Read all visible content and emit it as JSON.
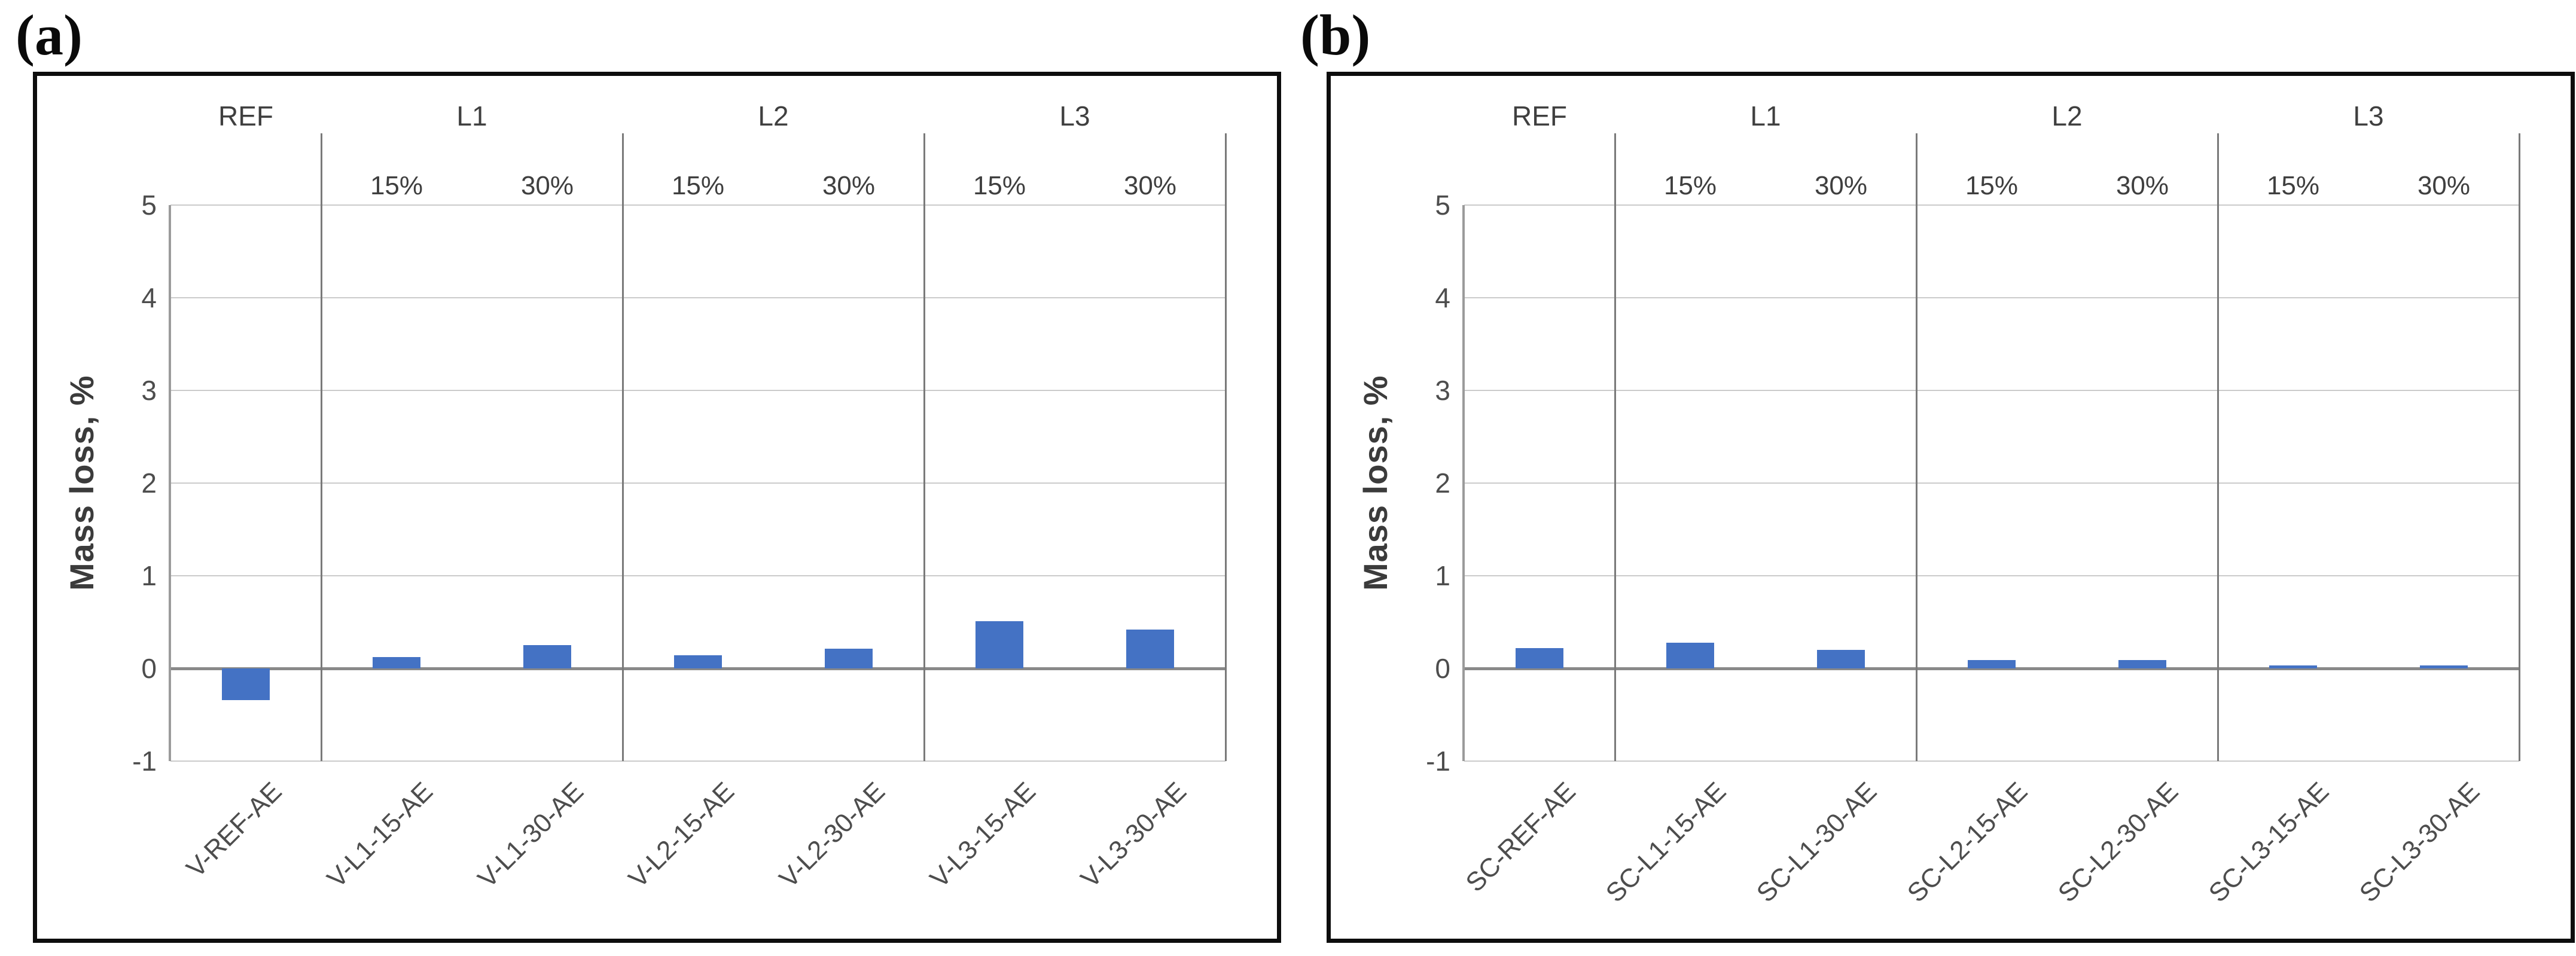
{
  "figure": {
    "panels": [
      {
        "tag": "(a)"
      },
      {
        "tag": "(b)"
      }
    ]
  },
  "chart_data": [
    {
      "type": "bar",
      "panel": "(a)",
      "title": "",
      "xlabel": "",
      "ylabel": "Mass loss, %",
      "ylim": [
        -1,
        5
      ],
      "yticks": [
        5,
        4,
        3,
        2,
        1,
        0,
        -1
      ],
      "grid": true,
      "legend_position": "none",
      "bar_color": "#4472C4",
      "groups": [
        {
          "label": "REF",
          "sublabels": []
        },
        {
          "label": "L1",
          "sublabels": [
            "15%",
            "30%"
          ]
        },
        {
          "label": "L2",
          "sublabels": [
            "15%",
            "30%"
          ]
        },
        {
          "label": "L3",
          "sublabels": [
            "15%",
            "30%"
          ]
        }
      ],
      "categories": [
        "V-REF-AE",
        "V-L1-15-AE",
        "V-L1-30-AE",
        "V-L2-15-AE",
        "V-L2-30-AE",
        "V-L3-15-AE",
        "V-L3-30-AE"
      ],
      "values": [
        -0.34,
        0.12,
        0.25,
        0.14,
        0.21,
        0.51,
        0.42
      ]
    },
    {
      "type": "bar",
      "panel": "(b)",
      "title": "",
      "xlabel": "",
      "ylabel": "Mass loss, %",
      "ylim": [
        -1,
        5
      ],
      "yticks": [
        5,
        4,
        3,
        2,
        1,
        0,
        -1
      ],
      "grid": true,
      "legend_position": "none",
      "bar_color": "#4472C4",
      "groups": [
        {
          "label": "REF",
          "sublabels": []
        },
        {
          "label": "L1",
          "sublabels": [
            "15%",
            "30%"
          ]
        },
        {
          "label": "L2",
          "sublabels": [
            "15%",
            "30%"
          ]
        },
        {
          "label": "L3",
          "sublabels": [
            "15%",
            "30%"
          ]
        }
      ],
      "categories": [
        "SC-REF-AE",
        "SC-L1-15-AE",
        "SC-L1-30-AE",
        "SC-L2-15-AE",
        "SC-L2-30-AE",
        "SC-L3-15-AE",
        "SC-L3-30-AE"
      ],
      "values": [
        0.22,
        0.28,
        0.2,
        0.09,
        0.09,
        0.03,
        0.03
      ]
    }
  ]
}
